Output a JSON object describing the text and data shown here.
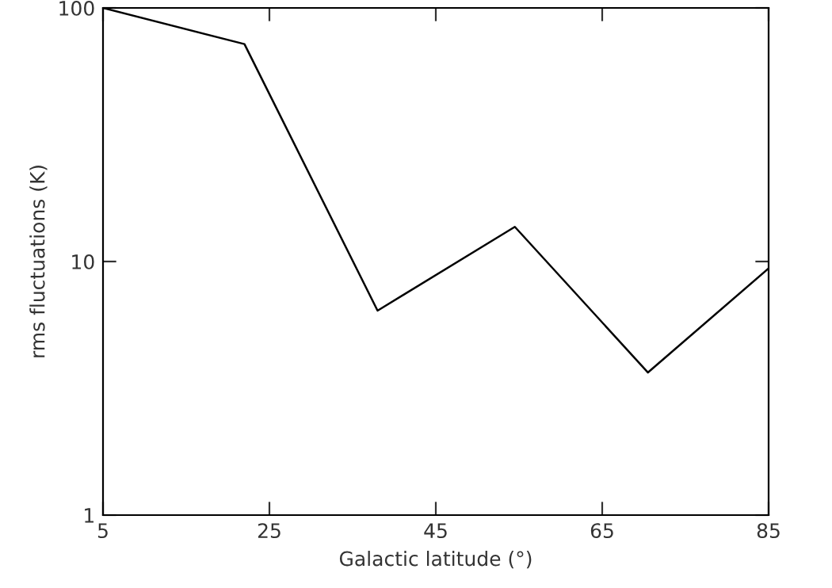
{
  "chart_data": {
    "type": "line",
    "xlabel": "Galactic latitude (°)",
    "ylabel": "rms fluctuations (K)",
    "x": [
      5,
      22,
      38,
      54.5,
      70.5,
      85
    ],
    "series": [
      {
        "color": "#000000",
        "values": [
          100,
          72,
          6.4,
          13.7,
          3.65,
          9.4
        ]
      }
    ],
    "xlim": [
      5,
      85
    ],
    "xticks": [
      5,
      25,
      45,
      65,
      85
    ],
    "ylim": [
      1,
      100
    ],
    "yticks": [
      1,
      10,
      100
    ],
    "log": true,
    "grid": false,
    "legend": false,
    "marker": "none",
    "line_style": "solid"
  }
}
